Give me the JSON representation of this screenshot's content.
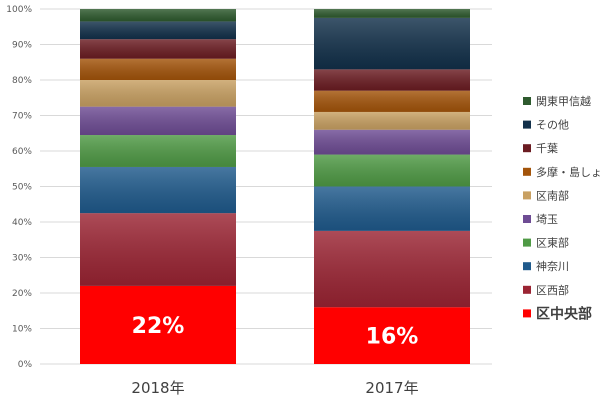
{
  "chart_data": {
    "type": "bar",
    "stacked": true,
    "percent": true,
    "categories": [
      "2018年",
      "2017年"
    ],
    "ylim": [
      0,
      100
    ],
    "yticks": [
      "0%",
      "10%",
      "20%",
      "30%",
      "40%",
      "50%",
      "60%",
      "70%",
      "80%",
      "90%",
      "100%"
    ],
    "grid": true,
    "legend_position": "right",
    "series": [
      {
        "name": "区中央部",
        "values": [
          22,
          16
        ],
        "color": "#ff0000",
        "data_labels": [
          "22%",
          "16%"
        ],
        "bold": true
      },
      {
        "name": "区西部",
        "values": [
          20.5,
          21.5
        ],
        "color": "#9b2433"
      },
      {
        "name": "神奈川",
        "values": [
          13,
          12.5
        ],
        "color": "#1f5a8c"
      },
      {
        "name": "区東部",
        "values": [
          9,
          9
        ],
        "color": "#4f9a45"
      },
      {
        "name": "埼玉",
        "values": [
          8,
          7
        ],
        "color": "#6e4c94"
      },
      {
        "name": "区南部",
        "values": [
          7.5,
          5
        ],
        "color": "#c8a062"
      },
      {
        "name": "多摩・島しょ",
        "values": [
          6,
          6
        ],
        "color": "#a3540a"
      },
      {
        "name": "千葉",
        "values": [
          5.5,
          6
        ],
        "color": "#6b1c22"
      },
      {
        "name": "その他",
        "values": [
          5,
          14.5
        ],
        "color": "#12304a"
      },
      {
        "name": "関東甲信越",
        "values": [
          3.5,
          2.5
        ],
        "color": "#2e5a2e"
      }
    ]
  }
}
